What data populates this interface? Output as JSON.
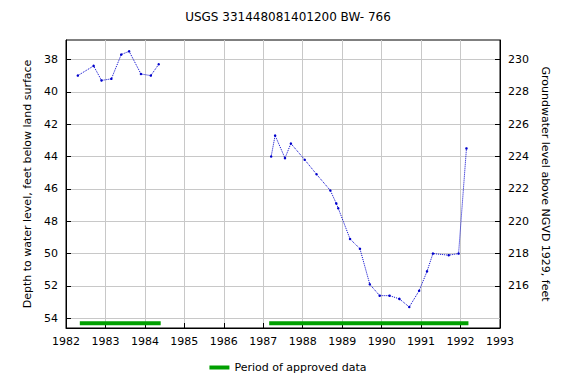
{
  "chart_data": {
    "type": "line",
    "title": "USGS 331448081401200 BW- 766",
    "x_label": "",
    "y_label": "Depth to water level, feet below land surface",
    "y2_label": "Groundwater level above NGVD 1929, feet",
    "xlim": [
      1982,
      1993
    ],
    "xticks": [
      1982,
      1983,
      1984,
      1985,
      1986,
      1987,
      1988,
      1989,
      1990,
      1991,
      1992,
      1993
    ],
    "ylim": [
      54.6,
      36.8
    ],
    "yticks": [
      38,
      40,
      42,
      44,
      46,
      48,
      50,
      52,
      54
    ],
    "y2lim": [
      213.4,
      231.2
    ],
    "y2ticks": [
      216,
      218,
      220,
      222,
      224,
      226,
      228,
      230
    ],
    "grid": true,
    "legend": "bottom",
    "series": [
      {
        "color": "#0000cc",
        "marker": "circle",
        "line_style": "dotted",
        "x": [
          1982.3,
          1982.7,
          1982.9,
          1983.15,
          1983.4,
          1983.6,
          1983.9,
          1984.15,
          1984.35,
          null,
          1987.2,
          1987.3,
          1987.55,
          1987.7,
          1988.05,
          1988.35,
          1988.7,
          1988.85,
          1988.9,
          1989.2,
          1989.45,
          1989.7,
          1989.95,
          1990.2,
          1990.45,
          1990.7,
          1990.95,
          1991.15,
          1991.3,
          1991.7,
          1991.95,
          1992.15
        ],
        "values": [
          39.0,
          38.4,
          39.3,
          39.2,
          37.7,
          37.5,
          38.9,
          39.0,
          38.3,
          null,
          44.0,
          42.7,
          44.1,
          43.2,
          44.2,
          45.1,
          46.1,
          46.9,
          47.2,
          49.1,
          49.7,
          51.9,
          52.6,
          52.6,
          52.8,
          53.3,
          52.3,
          51.1,
          50.0,
          50.1,
          50.0,
          43.5
        ]
      },
      {
        "name": "Period of approved data",
        "color": "#00a000",
        "line_style": "solid",
        "periods": [
          [
            1982.35,
            1984.4
          ],
          [
            1987.15,
            1992.2
          ]
        ],
        "depth": 54.3
      }
    ]
  }
}
